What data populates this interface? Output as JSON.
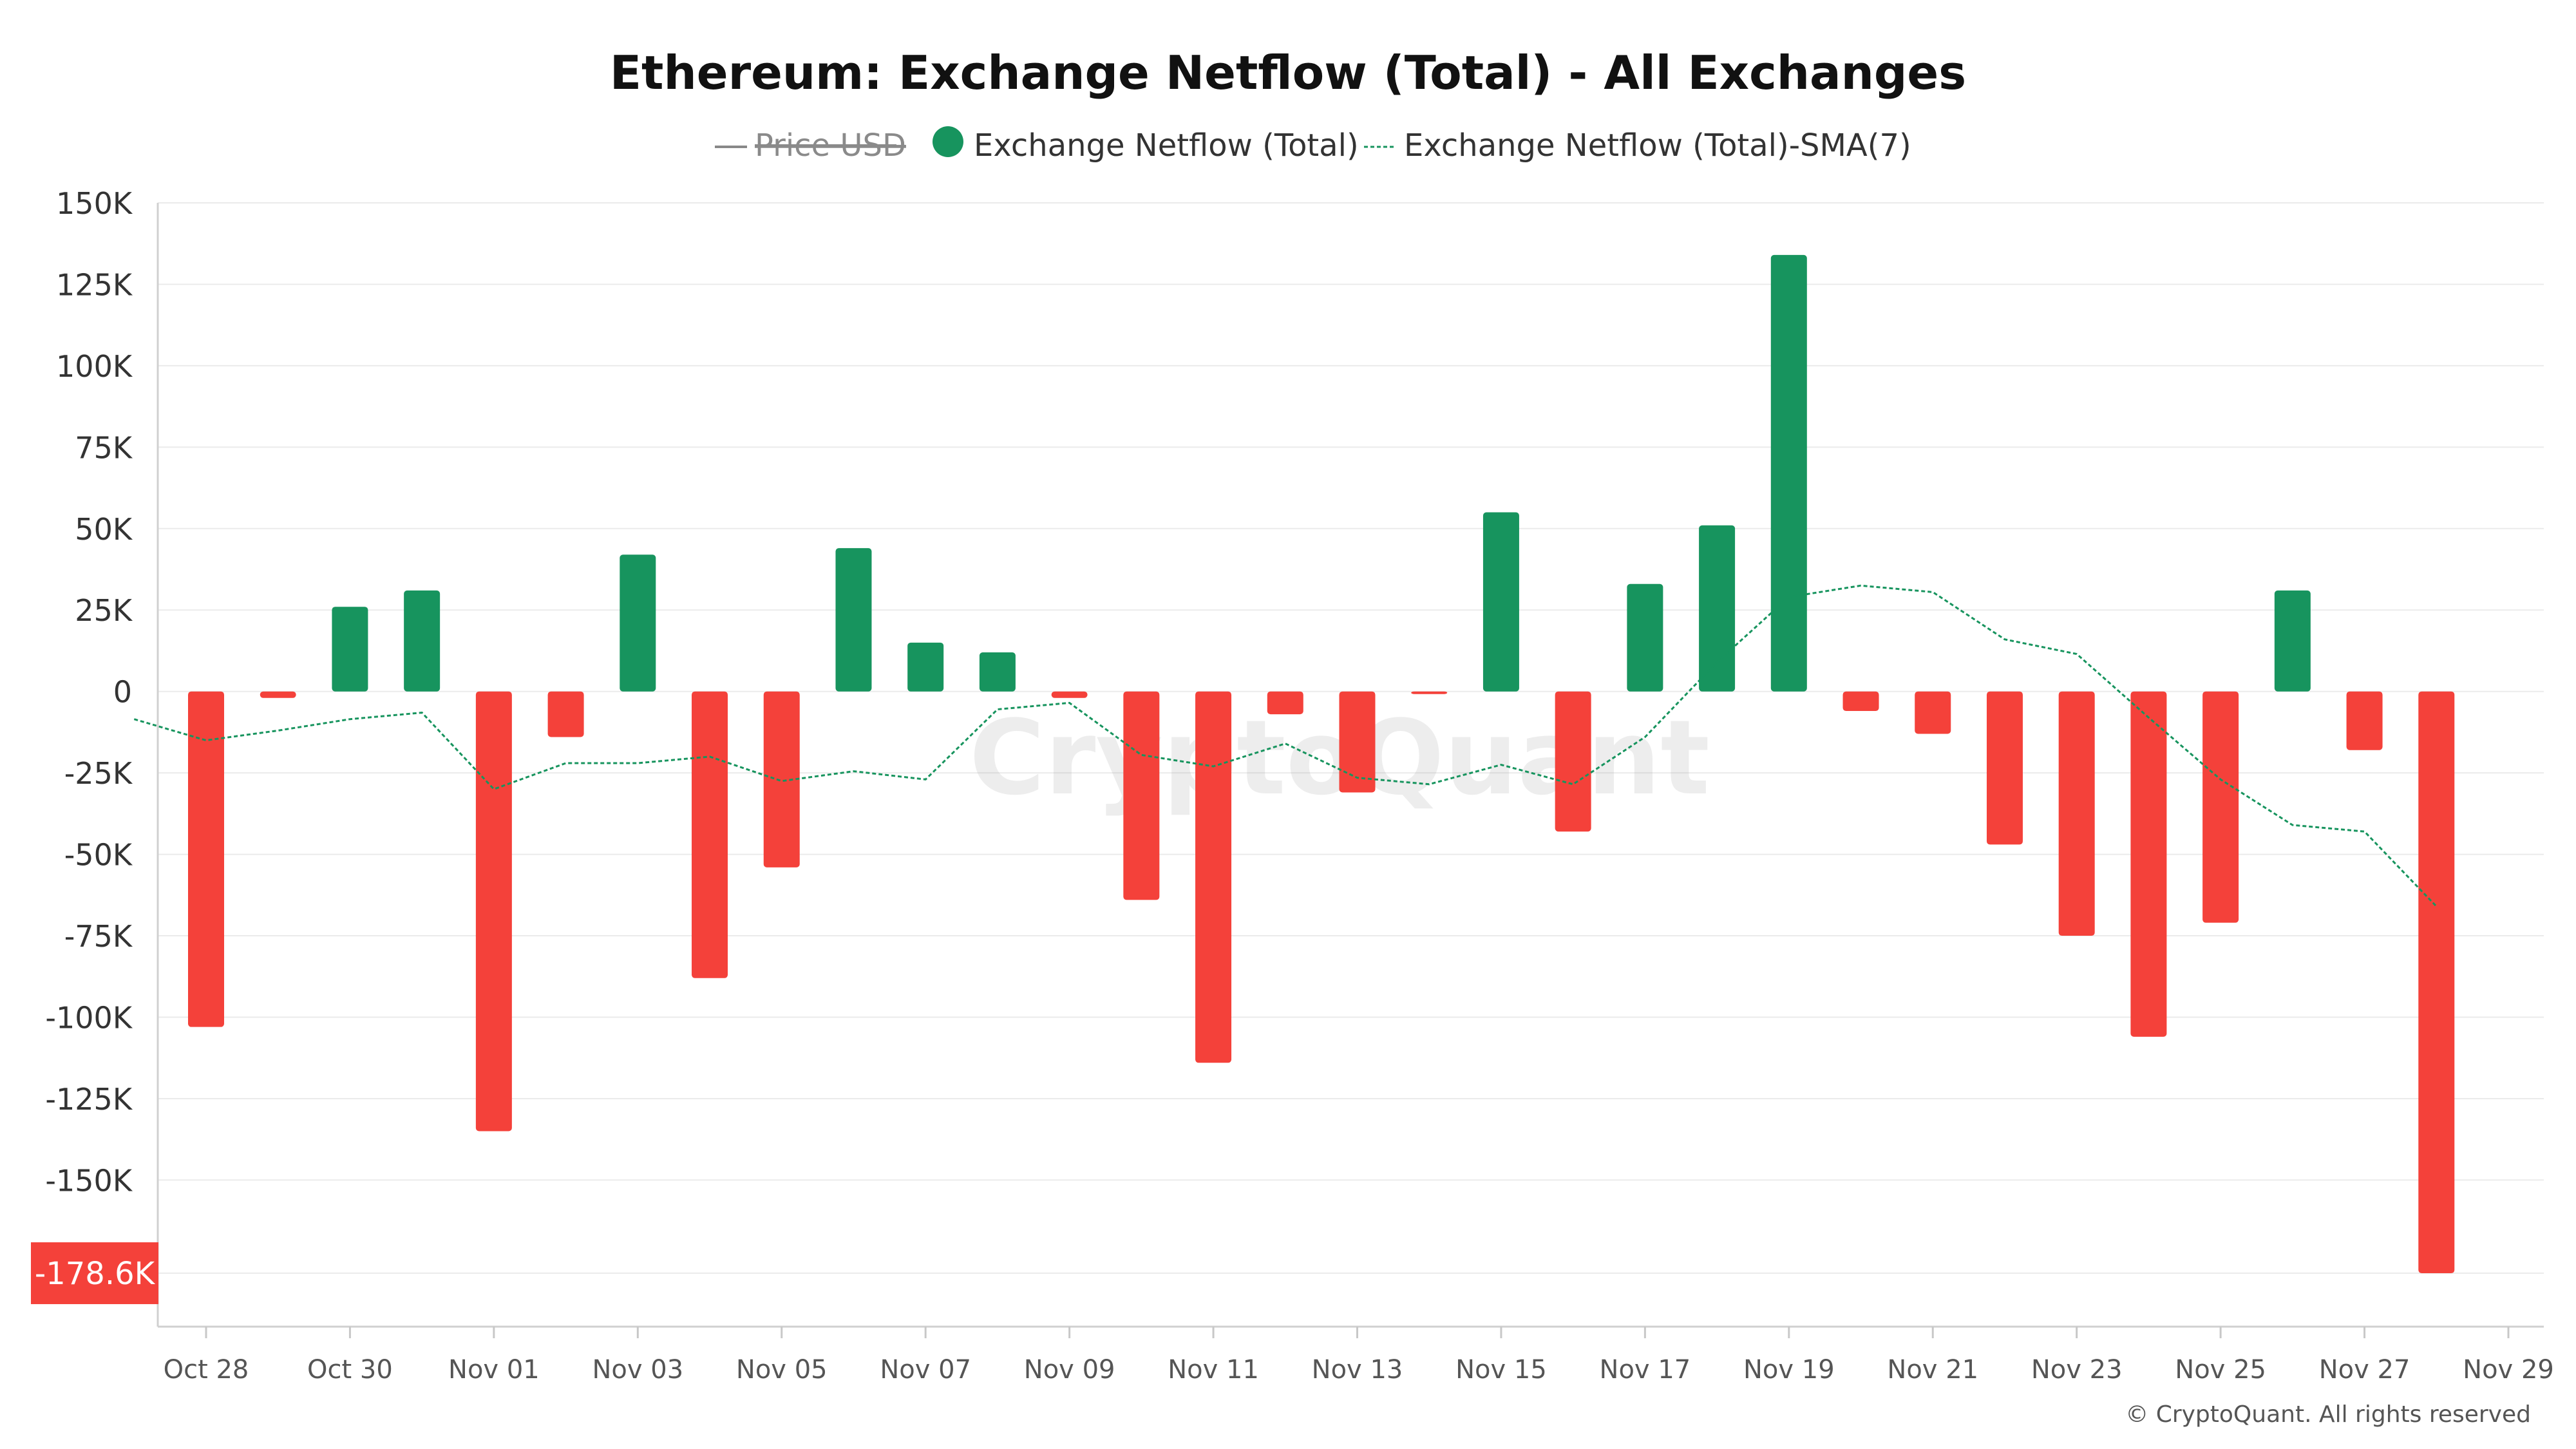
{
  "chart_data": {
    "type": "bar",
    "title": "Ethereum: Exchange Netflow (Total) - All Exchanges",
    "legend": {
      "placement": "top-center",
      "items": [
        {
          "label": "Price USD",
          "style": "line",
          "hidden": true,
          "color": "#888888"
        },
        {
          "label": "Exchange Netflow (Total)",
          "style": "dot",
          "hidden": false,
          "color": "#17945e"
        },
        {
          "label": "Exchange Netflow (Total)-SMA(7)",
          "style": "dashed-line",
          "hidden": false,
          "color": "#17945e"
        }
      ]
    },
    "colors": {
      "positive": "#17945e",
      "negative": "#f4413a",
      "sma": "#17945e",
      "current_value_badge": "#f4413a"
    },
    "ylim": [
      -195000,
      150000
    ],
    "y_ticks": [
      150000,
      125000,
      100000,
      75000,
      50000,
      25000,
      0,
      -25000,
      -50000,
      -75000,
      -100000,
      -125000,
      -150000
    ],
    "y_tick_labels": [
      "150K",
      "125K",
      "100K",
      "75K",
      "50K",
      "25K",
      "0",
      "-25K",
      "-50K",
      "-75K",
      "-100K",
      "-125K",
      "-150K"
    ],
    "current_value": -178600,
    "current_value_label": "-178.6K",
    "x_tick_labels": [
      "Oct 28",
      "Oct 30",
      "Nov 01",
      "Nov 03",
      "Nov 05",
      "Nov 07",
      "Nov 09",
      "Nov 11",
      "Nov 13",
      "Nov 15",
      "Nov 17",
      "Nov 19",
      "Nov 21",
      "Nov 23",
      "Nov 25",
      "Nov 27",
      "Nov 29"
    ],
    "x_tick_dates": [
      "2024-10-28",
      "2024-10-30",
      "2024-11-01",
      "2024-11-03",
      "2024-11-05",
      "2024-11-07",
      "2024-11-09",
      "2024-11-11",
      "2024-11-13",
      "2024-11-15",
      "2024-11-17",
      "2024-11-19",
      "2024-11-21",
      "2024-11-23",
      "2024-11-25",
      "2024-11-27",
      "2024-11-29"
    ],
    "grid": true,
    "series": [
      {
        "name": "Exchange Netflow (Total)",
        "type": "bar",
        "points": [
          {
            "date": "2024-10-28",
            "value": -103000
          },
          {
            "date": "2024-10-29",
            "value": -2000
          },
          {
            "date": "2024-10-30",
            "value": 26000
          },
          {
            "date": "2024-10-31",
            "value": 31000
          },
          {
            "date": "2024-11-01",
            "value": -135000
          },
          {
            "date": "2024-11-02",
            "value": -14000
          },
          {
            "date": "2024-11-03",
            "value": 42000
          },
          {
            "date": "2024-11-04",
            "value": -88000
          },
          {
            "date": "2024-11-05",
            "value": -54000
          },
          {
            "date": "2024-11-06",
            "value": 44000
          },
          {
            "date": "2024-11-07",
            "value": 15000
          },
          {
            "date": "2024-11-08",
            "value": 12000
          },
          {
            "date": "2024-11-09",
            "value": -2000
          },
          {
            "date": "2024-11-10",
            "value": -64000
          },
          {
            "date": "2024-11-11",
            "value": -114000
          },
          {
            "date": "2024-11-12",
            "value": -7000
          },
          {
            "date": "2024-11-13",
            "value": -31000
          },
          {
            "date": "2024-11-14",
            "value": -500
          },
          {
            "date": "2024-11-15",
            "value": 55000
          },
          {
            "date": "2024-11-16",
            "value": -43000
          },
          {
            "date": "2024-11-17",
            "value": 33000
          },
          {
            "date": "2024-11-18",
            "value": 51000
          },
          {
            "date": "2024-11-19",
            "value": 134000
          },
          {
            "date": "2024-11-20",
            "value": -6000
          },
          {
            "date": "2024-11-21",
            "value": -13000
          },
          {
            "date": "2024-11-22",
            "value": -47000
          },
          {
            "date": "2024-11-23",
            "value": -75000
          },
          {
            "date": "2024-11-24",
            "value": -106000
          },
          {
            "date": "2024-11-25",
            "value": -71000
          },
          {
            "date": "2024-11-26",
            "value": 31000
          },
          {
            "date": "2024-11-27",
            "value": -18000
          },
          {
            "date": "2024-11-28",
            "value": -178600
          }
        ]
      },
      {
        "name": "Exchange Netflow (Total)-SMA(7)",
        "type": "line",
        "points": [
          {
            "date": "2024-10-27",
            "value": -8500
          },
          {
            "date": "2024-10-28",
            "value": -15000
          },
          {
            "date": "2024-10-29",
            "value": -12000
          },
          {
            "date": "2024-10-30",
            "value": -8500
          },
          {
            "date": "2024-10-31",
            "value": -6500
          },
          {
            "date": "2024-11-01",
            "value": -30000
          },
          {
            "date": "2024-11-02",
            "value": -22000
          },
          {
            "date": "2024-11-03",
            "value": -22000
          },
          {
            "date": "2024-11-04",
            "value": -20000
          },
          {
            "date": "2024-11-05",
            "value": -27500
          },
          {
            "date": "2024-11-06",
            "value": -24500
          },
          {
            "date": "2024-11-07",
            "value": -27000
          },
          {
            "date": "2024-11-08",
            "value": -5500
          },
          {
            "date": "2024-11-09",
            "value": -3500
          },
          {
            "date": "2024-11-10",
            "value": -19500
          },
          {
            "date": "2024-11-11",
            "value": -23000
          },
          {
            "date": "2024-11-12",
            "value": -16000
          },
          {
            "date": "2024-11-13",
            "value": -26500
          },
          {
            "date": "2024-11-14",
            "value": -28500
          },
          {
            "date": "2024-11-15",
            "value": -22500
          },
          {
            "date": "2024-11-16",
            "value": -28500
          },
          {
            "date": "2024-11-17",
            "value": -14000
          },
          {
            "date": "2024-11-18",
            "value": 9000
          },
          {
            "date": "2024-11-19",
            "value": 29000
          },
          {
            "date": "2024-11-20",
            "value": 32500
          },
          {
            "date": "2024-11-21",
            "value": 30500
          },
          {
            "date": "2024-11-22",
            "value": 16000
          },
          {
            "date": "2024-11-23",
            "value": 11500
          },
          {
            "date": "2024-11-24",
            "value": -8000
          },
          {
            "date": "2024-11-25",
            "value": -27000
          },
          {
            "date": "2024-11-26",
            "value": -41000
          },
          {
            "date": "2024-11-27",
            "value": -43000
          },
          {
            "date": "2024-11-28",
            "value": -66000
          }
        ]
      }
    ],
    "watermark": "CryptoQuant",
    "copyright": "© CryptoQuant. All rights reserved"
  }
}
